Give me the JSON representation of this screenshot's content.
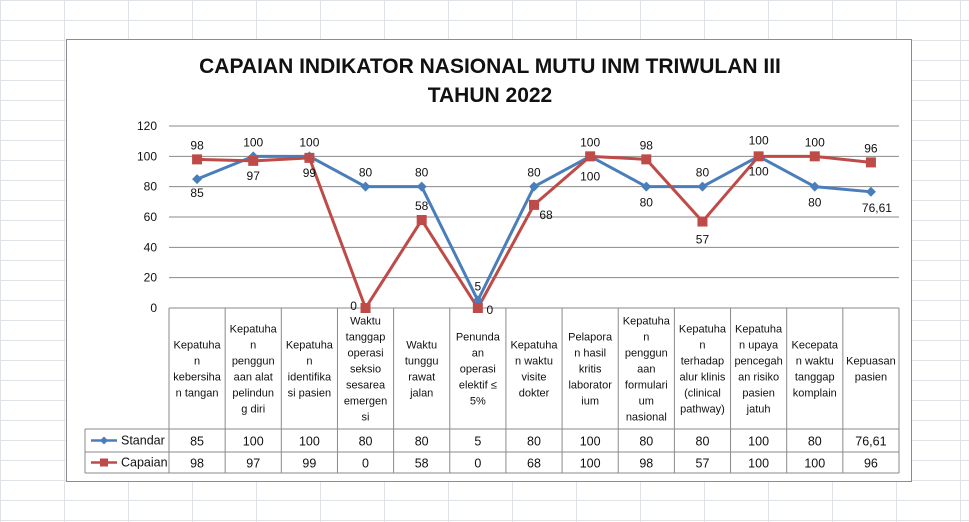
{
  "chart_data": {
    "type": "line",
    "title_lines": [
      "CAPAIAN INDIKATOR NASIONAL MUTU INM TRIWULAN III",
      "TAHUN 2022"
    ],
    "ylim": [
      0,
      120
    ],
    "yticks": [
      0,
      20,
      40,
      60,
      80,
      100,
      120
    ],
    "grid": true,
    "legend": "data-table-left",
    "categories": [
      "Kepatuhan kebersihan tangan",
      "Kepatuhan penggunaan alat pelindung diri",
      "Kepatuhan identifikasi pasien",
      "Waktu tanggap operasi seksio sesarea emergensi",
      "Waktu tunggu rawat jalan",
      "Penundaan operasi elektif ≤ 5%",
      "Kepatuhan waktu visite dokter",
      "Pelaporan hasil kritis laboratorium",
      "Kepatuhan penggunaan formularium nasional",
      "Kepatuhan terhadap alur klinis (clinical pathway)",
      "Kepatuhan upaya pencegahan risiko pasien jatuh",
      "Kecepatan waktu tanggap komplain",
      "Kepuasan pasien"
    ],
    "category_lines": [
      [
        "Kepatuha",
        "n",
        "kebersiha",
        "n tangan"
      ],
      [
        "Kepatuha",
        "n",
        "penggun",
        "aan alat",
        "pelindun",
        "g diri"
      ],
      [
        "Kepatuha",
        "n",
        "identifika",
        "si pasien"
      ],
      [
        "Waktu",
        "tanggap",
        "operasi",
        "seksio",
        "sesarea",
        "emergen",
        "si"
      ],
      [
        "Waktu",
        "tunggu",
        "rawat",
        "jalan"
      ],
      [
        "Penunda",
        "an",
        "operasi",
        "elektif ≤",
        "5%"
      ],
      [
        "Kepatuha",
        "n waktu",
        "visite",
        "dokter"
      ],
      [
        "Pelapora",
        "n hasil",
        "kritis",
        "laborator",
        "ium"
      ],
      [
        "Kepatuha",
        "n",
        "penggun",
        "aan",
        "formulari",
        "um",
        "nasional"
      ],
      [
        "Kepatuha",
        "n",
        "terhadap",
        "alur klinis",
        "(clinical",
        "pathway)"
      ],
      [
        "Kepatuha",
        "n upaya",
        "pencegah",
        "an risiko",
        "pasien",
        "jatuh"
      ],
      [
        "Kecepata",
        "n waktu",
        "tanggap",
        "komplain"
      ],
      [
        "Kepuasan",
        "pasien"
      ]
    ],
    "series": [
      {
        "name": "Standar",
        "color": "#4a7ebb",
        "marker": "diamond",
        "values": [
          85,
          100,
          100,
          80,
          80,
          5,
          80,
          100,
          80,
          80,
          100,
          80,
          76.61
        ],
        "labels": [
          "85",
          "100",
          "100",
          "80",
          "80",
          "5",
          "80",
          "100",
          "80",
          "80",
          "100",
          "80",
          "76,61"
        ],
        "table_labels": [
          "85",
          "100",
          "100",
          "80",
          "80",
          "5",
          "80",
          "100",
          "80",
          "80",
          "100",
          "80",
          "76,61"
        ]
      },
      {
        "name": "Capaian",
        "color": "#be4b48",
        "marker": "square",
        "values": [
          98,
          97,
          99,
          0,
          58,
          0,
          68,
          100,
          98,
          57,
          100,
          100,
          96
        ],
        "labels": [
          "98",
          "97",
          "99",
          "0",
          "58",
          "0",
          "68",
          "100",
          "98",
          "57",
          "100",
          "100",
          "96"
        ],
        "table_labels": [
          "98",
          "97",
          "99",
          "0",
          "58",
          "0",
          "68",
          "100",
          "98",
          "57",
          "100",
          "100",
          "96"
        ]
      }
    ]
  }
}
